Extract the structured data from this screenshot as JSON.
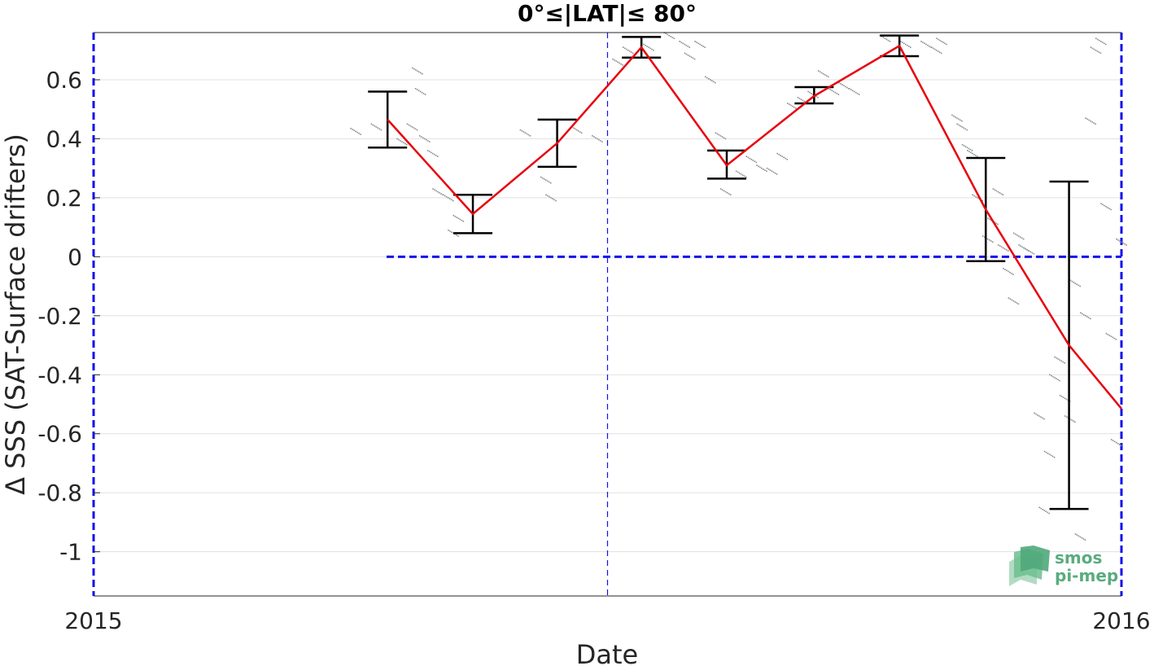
{
  "chart_data": {
    "type": "scatter",
    "title": "0°≤|LAT|≤ 80°",
    "xlabel": "Date",
    "ylabel": "Δ SSS (SAT-Surface drifters)",
    "xlim": [
      2015,
      2016
    ],
    "ylim": [
      -1.15,
      0.76
    ],
    "x_tick_labels": [
      "2015",
      "2016"
    ],
    "y_ticks": [
      0.6,
      0.4,
      0.2,
      0,
      -0.2,
      -0.4,
      -0.6,
      -0.8,
      -1
    ],
    "y_tick_labels": [
      "0.6",
      "0.4",
      "0.2",
      "0",
      "-0.2",
      "-0.4",
      "-0.6",
      "-0.8",
      "-1"
    ],
    "grid": true,
    "reference_line_y": 0,
    "reference_line_x": 2015.5,
    "series": [
      {
        "kind": "monthly_mean_with_error",
        "color": "#e8000b",
        "x": [
          2015.286,
          2015.369,
          2015.451,
          2015.533,
          2015.616,
          2015.701,
          2015.784,
          2015.868,
          2015.949,
          2016.0
        ],
        "mean": [
          0.465,
          0.145,
          0.385,
          0.71,
          0.31,
          0.545,
          0.715,
          0.16,
          -0.3,
          -0.515
        ],
        "lower": [
          0.37,
          0.08,
          0.305,
          0.675,
          0.265,
          0.52,
          0.68,
          -0.015,
          -0.855,
          null
        ],
        "upper": [
          0.56,
          0.21,
          0.465,
          0.745,
          0.36,
          0.575,
          0.75,
          0.335,
          0.255,
          null
        ]
      },
      {
        "kind": "daily_points",
        "color": "#8c8c8c",
        "points": [
          [
            2015.255,
            0.425
          ],
          [
            2015.275,
            0.44
          ],
          [
            2015.3,
            0.39
          ],
          [
            2015.31,
            0.44
          ],
          [
            2015.315,
            0.63
          ],
          [
            2015.318,
            0.56
          ],
          [
            2015.322,
            0.4
          ],
          [
            2015.33,
            0.35
          ],
          [
            2015.335,
            0.22
          ],
          [
            2015.345,
            0.2
          ],
          [
            2015.35,
            0.08
          ],
          [
            2015.355,
            0.13
          ],
          [
            2015.42,
            0.42
          ],
          [
            2015.44,
            0.26
          ],
          [
            2015.445,
            0.2
          ],
          [
            2015.47,
            0.43
          ],
          [
            2015.49,
            0.4
          ],
          [
            2015.51,
            0.66
          ],
          [
            2015.52,
            0.7
          ],
          [
            2015.54,
            0.71
          ],
          [
            2015.56,
            0.75
          ],
          [
            2015.575,
            0.72
          ],
          [
            2015.58,
            0.68
          ],
          [
            2015.59,
            0.72
          ],
          [
            2015.6,
            0.6
          ],
          [
            2015.61,
            0.41
          ],
          [
            2015.615,
            0.22
          ],
          [
            2015.63,
            0.28
          ],
          [
            2015.64,
            0.33
          ],
          [
            2015.65,
            0.3
          ],
          [
            2015.66,
            0.29
          ],
          [
            2015.67,
            0.34
          ],
          [
            2015.68,
            0.51
          ],
          [
            2015.69,
            0.53
          ],
          [
            2015.7,
            0.55
          ],
          [
            2015.71,
            0.62
          ],
          [
            2015.72,
            0.56
          ],
          [
            2015.73,
            0.58
          ],
          [
            2015.74,
            0.56
          ],
          [
            2015.77,
            0.74
          ],
          [
            2015.79,
            0.72
          ],
          [
            2015.81,
            0.72
          ],
          [
            2015.82,
            0.7
          ],
          [
            2015.825,
            0.73
          ],
          [
            2015.84,
            0.47
          ],
          [
            2015.845,
            0.44
          ],
          [
            2015.85,
            0.37
          ],
          [
            2015.855,
            0.35
          ],
          [
            2015.86,
            0.2
          ],
          [
            2015.87,
            0.06
          ],
          [
            2015.875,
            0.12
          ],
          [
            2015.88,
            0.22
          ],
          [
            2015.885,
            0.03
          ],
          [
            2015.89,
            -0.05
          ],
          [
            2015.895,
            -0.15
          ],
          [
            2015.9,
            0.07
          ],
          [
            2015.905,
            0.03
          ],
          [
            2015.91,
            0.02
          ],
          [
            2015.92,
            -0.54
          ],
          [
            2015.925,
            -0.86
          ],
          [
            2015.93,
            -0.67
          ],
          [
            2015.935,
            -0.41
          ],
          [
            2015.94,
            -0.35
          ],
          [
            2015.945,
            -0.48
          ],
          [
            2015.95,
            -0.55
          ],
          [
            2015.955,
            -0.09
          ],
          [
            2015.96,
            -0.95
          ],
          [
            2015.965,
            -0.2
          ],
          [
            2015.97,
            0.46
          ],
          [
            2015.975,
            0.7
          ],
          [
            2015.98,
            0.73
          ],
          [
            2015.985,
            0.17
          ],
          [
            2015.99,
            -0.27
          ],
          [
            2015.995,
            -0.63
          ],
          [
            2016.0,
            0.05
          ]
        ]
      }
    ]
  },
  "logo": {
    "line1": "smos",
    "line2": "pi-mep",
    "color": "#5aab7e"
  }
}
